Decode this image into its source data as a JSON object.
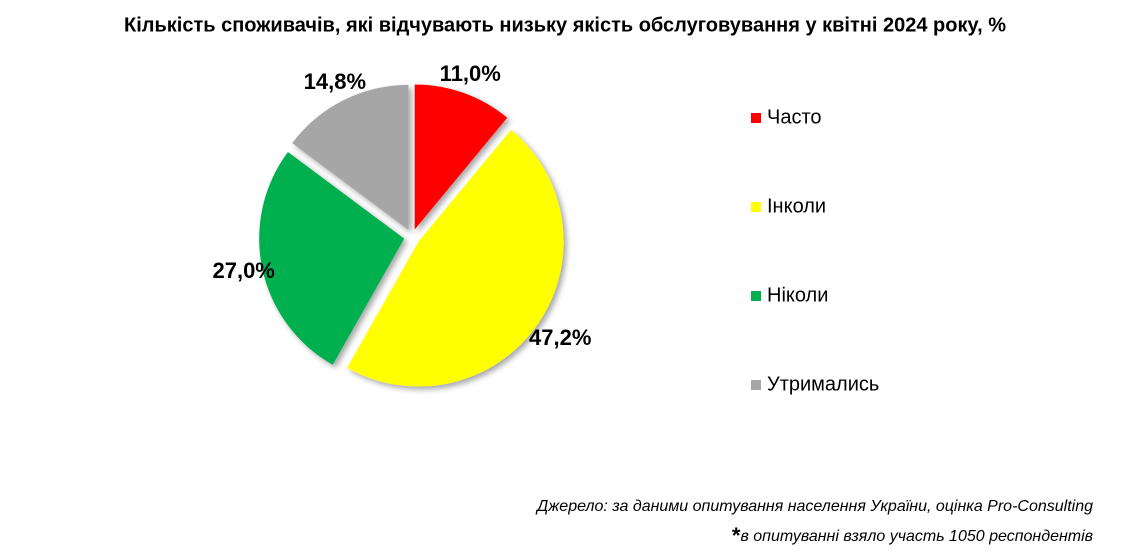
{
  "chart_data": {
    "type": "pie",
    "title": "Кількість споживачів, які відчувають низьку якість обслуговування у квітні 2024 року, %",
    "categories": [
      "Часто",
      "Інколи",
      "Ніколи",
      "Утримались"
    ],
    "values": [
      11.0,
      47.2,
      27.0,
      14.8
    ],
    "value_labels": [
      "11,0%",
      "47,2%",
      "27,0%",
      "14,8%"
    ],
    "colors": [
      "#ff0000",
      "#ffff00",
      "#00b050",
      "#a6a6a6"
    ],
    "legend": "right",
    "source": "Джерело: за даними опитування населення України, оцінка Pro-Consulting",
    "footnote_mark": "*",
    "footnote": "в опитуванні взяло участь 1050 респондентів"
  }
}
